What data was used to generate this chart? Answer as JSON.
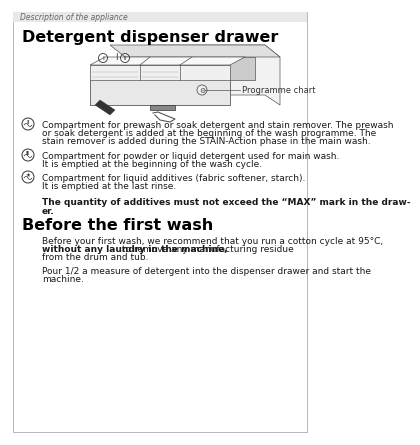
{
  "page_title": "Description of the appliance",
  "section1_title": "Detergent dispenser drawer",
  "section2_title": "Before the first wash",
  "programme_chart_label": "Programme chart",
  "bullet1_text_line1": "Compartment for prewash or soak detergent and stain remover. The prewash",
  "bullet1_text_line2": "or soak detergent is added at the beginning of the wash programme. The",
  "bullet1_text_line3": "stain remover is added during the STAIN-Action phase in the main wash.",
  "bullet2_text_line1": "Compartment for powder or liquid detergent used for main wash.",
  "bullet2_text_line2": "It is emptied at the beginning of the wash cycle.",
  "bullet3_text_line1": "Compartment for liquid additives (fabric softener, starch).",
  "bullet3_text_line2": "It is emptied at the last rinse.",
  "warning_line1": "The quantity of additives must not exceed the “MAX” mark in the draw-",
  "warning_line2": "er.",
  "para1_line1": "Before your first wash, we recommend that you run a cotton cycle at 95°C,",
  "para1_line2_bold": "without any laundry in the machine,",
  "para1_line2_normal": " to remove any manufacturing residue",
  "para1_line3": "from the drum and tub.",
  "para2_line1": "Pour 1/2 a measure of detergent into the dispenser drawer and start the",
  "para2_line2": "machine.",
  "bg_color": "#ffffff",
  "text_color": "#1a1a1a",
  "title_color": "#000000",
  "header_text_color": "#666666",
  "body_fontsize": 6.5,
  "title1_fontsize": 11.5,
  "title2_fontsize": 11.5,
  "header_fontsize": 5.5
}
